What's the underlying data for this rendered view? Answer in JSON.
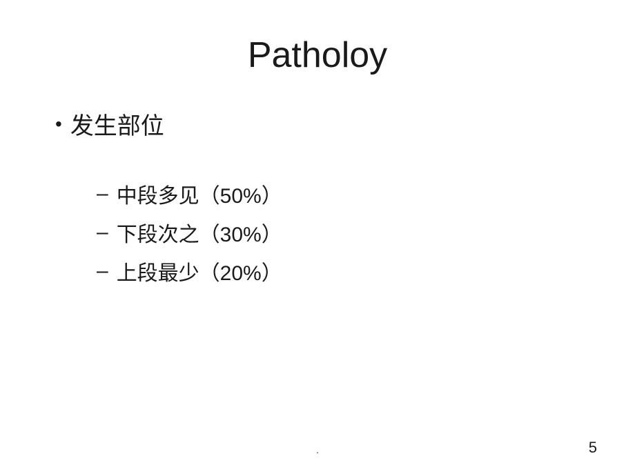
{
  "slide": {
    "title": "Patholoy",
    "main_bullet": {
      "marker": "•",
      "text": "发生部位"
    },
    "sub_bullets": [
      {
        "marker": "–",
        "text": "中段多见（50%）"
      },
      {
        "marker": "–",
        "text": "下段次之（30%）"
      },
      {
        "marker": "–",
        "text": "上段最少（20%）"
      }
    ],
    "footer_dot": ".",
    "page_number": "5"
  },
  "styling": {
    "background_color": "#ffffff",
    "text_color": "#1a1a1a",
    "title_fontsize": 52,
    "bullet1_fontsize": 34,
    "bullet2_fontsize": 30,
    "page_number_fontsize": 22
  }
}
